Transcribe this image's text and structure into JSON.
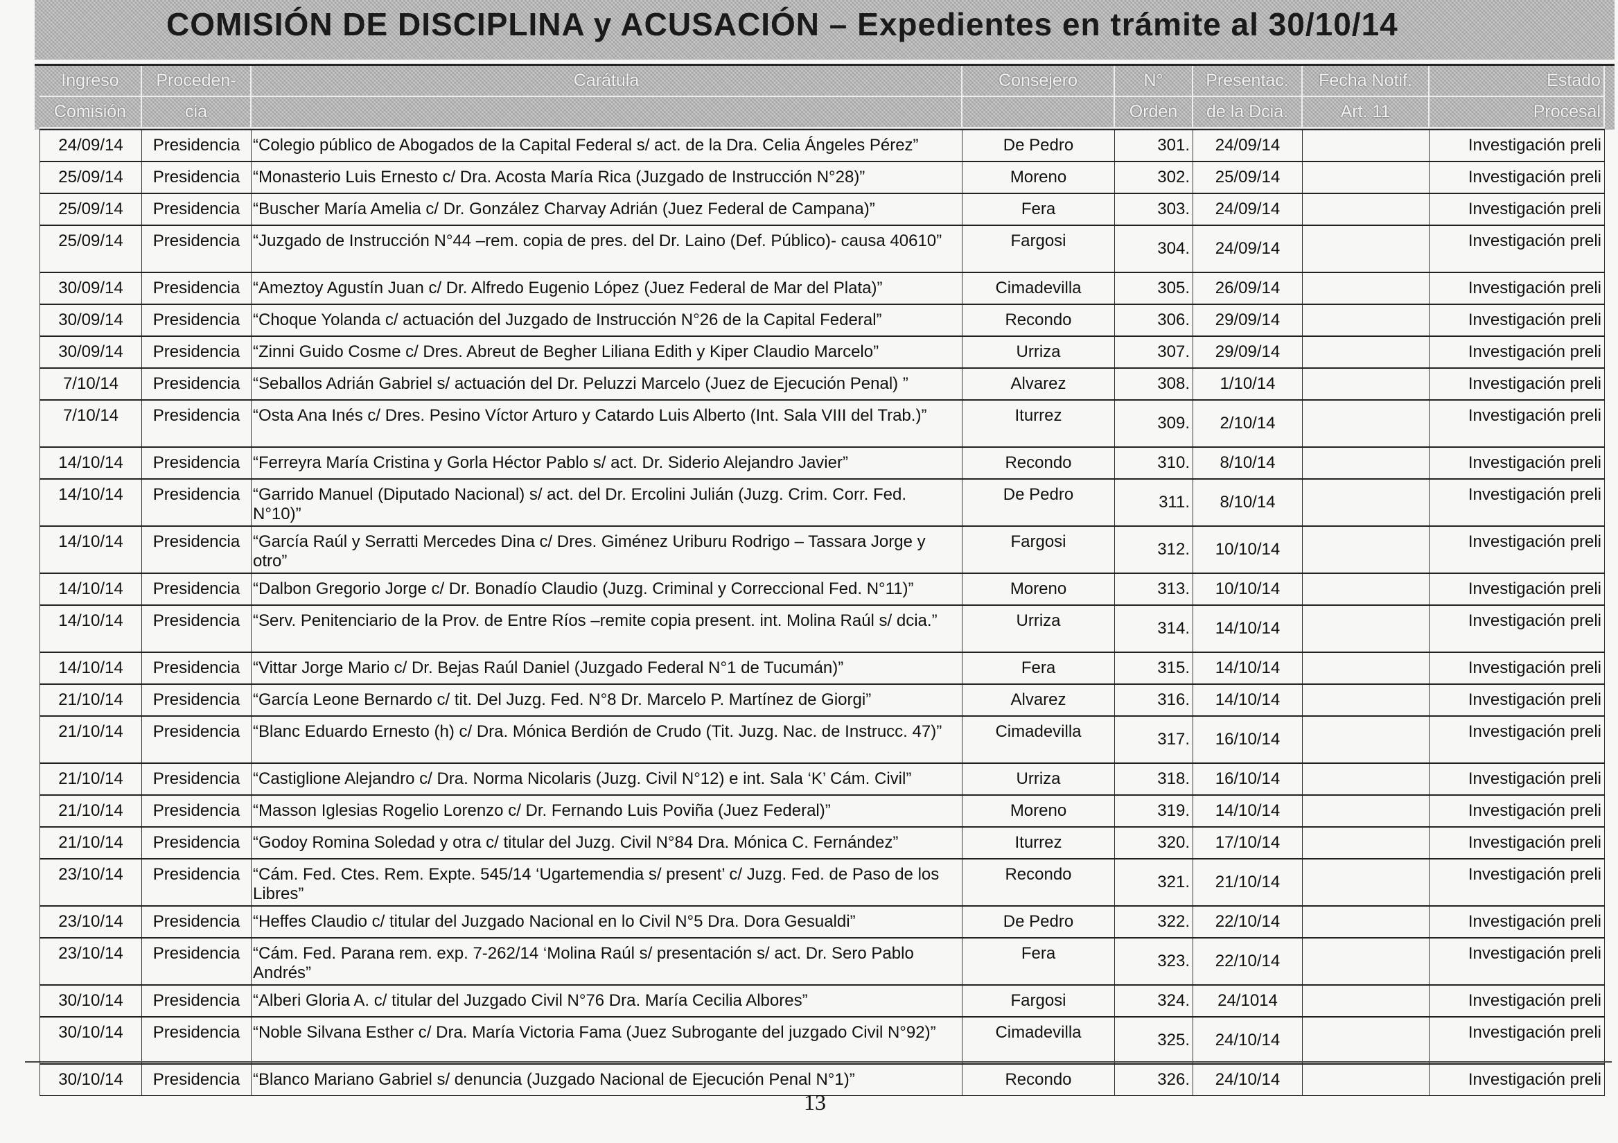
{
  "title": "COMISIÓN DE DISCIPLINA y ACUSACIÓN – Expedientes en trámite al 30/10/14",
  "headers": {
    "row1": [
      "Ingreso",
      "Proceden-",
      "Carátula",
      "Consejero",
      "N°",
      "Presentac.",
      "Fecha Notif.",
      "Estado"
    ],
    "row2": [
      "Comisión",
      "cia",
      "",
      "",
      "Orden",
      "de la Dcia.",
      "Art. 11",
      "Procesal"
    ]
  },
  "rows": [
    {
      "ingreso": "24/09/14",
      "procedencia": "Presidencia",
      "caratula": "“Colegio público de Abogados de la Capital Federal s/ act. de la Dra. Celia Ángeles Pérez”",
      "consejero": "De Pedro",
      "orden": "301.",
      "presentac": "24/09/14",
      "notif": "",
      "estado": "Investigación preli"
    },
    {
      "ingreso": "25/09/14",
      "procedencia": "Presidencia",
      "caratula": "“Monasterio Luis Ernesto c/ Dra. Acosta María Rica (Juzgado de Instrucción N°28)”",
      "consejero": "Moreno",
      "orden": "302.",
      "presentac": "25/09/14",
      "notif": "",
      "estado": "Investigación preli"
    },
    {
      "ingreso": "25/09/14",
      "procedencia": "Presidencia",
      "caratula": "“Buscher María Amelia c/ Dr. González Charvay Adrián (Juez Federal de Campana)”",
      "consejero": "Fera",
      "orden": "303.",
      "presentac": "24/09/14",
      "notif": "",
      "estado": "Investigación preli"
    },
    {
      "ingreso": "25/09/14",
      "procedencia": "Presidencia",
      "caratula": "“Juzgado de Instrucción N°44 –rem. copia de pres. del Dr. Laino (Def. Público)- causa 40610”",
      "consejero": "Fargosi",
      "orden": "304.",
      "presentac": "24/09/14",
      "notif": "",
      "estado": "Investigación preli",
      "double": true
    },
    {
      "ingreso": "30/09/14",
      "procedencia": "Presidencia",
      "caratula": "“Ameztoy Agustín Juan c/ Dr. Alfredo Eugenio López (Juez Federal de Mar del Plata)”",
      "consejero": "Cimadevilla",
      "orden": "305.",
      "presentac": "26/09/14",
      "notif": "",
      "estado": "Investigación preli"
    },
    {
      "ingreso": "30/09/14",
      "procedencia": "Presidencia",
      "caratula": "“Choque Yolanda c/ actuación del Juzgado de Instrucción N°26 de la Capital Federal”",
      "consejero": "Recondo",
      "orden": "306.",
      "presentac": "29/09/14",
      "notif": "",
      "estado": "Investigación preli"
    },
    {
      "ingreso": "30/09/14",
      "procedencia": "Presidencia",
      "caratula": "“Zinni Guido Cosme c/ Dres. Abreut de Begher Liliana Edith y Kiper Claudio Marcelo”",
      "consejero": "Urriza",
      "orden": "307.",
      "presentac": "29/09/14",
      "notif": "",
      "estado": "Investigación preli"
    },
    {
      "ingreso": "7/10/14",
      "procedencia": "Presidencia",
      "caratula": "“Seballos Adrián Gabriel s/ actuación del Dr. Peluzzi Marcelo (Juez de Ejecución Penal) ”",
      "consejero": "Alvarez",
      "orden": "308.",
      "presentac": "1/10/14",
      "notif": "",
      "estado": "Investigación preli"
    },
    {
      "ingreso": "7/10/14",
      "procedencia": "Presidencia",
      "caratula": "“Osta Ana Inés c/ Dres. Pesino Víctor Arturo y Catardo Luis Alberto (Int. Sala VIII del Trab.)”",
      "consejero": "Iturrez",
      "orden": "309.",
      "presentac": "2/10/14",
      "notif": "",
      "estado": "Investigación preli",
      "double": true
    },
    {
      "ingreso": "14/10/14",
      "procedencia": "Presidencia",
      "caratula": "“Ferreyra María Cristina y Gorla Héctor Pablo s/ act. Dr. Siderio Alejandro Javier”",
      "consejero": "Recondo",
      "orden": "310.",
      "presentac": "8/10/14",
      "notif": "",
      "estado": "Investigación preli"
    },
    {
      "ingreso": "14/10/14",
      "procedencia": "Presidencia",
      "caratula": "“Garrido Manuel (Diputado Nacional) s/ act. del Dr. Ercolini Julián (Juzg. Crim. Corr. Fed. N°10)”",
      "consejero": "De Pedro",
      "orden": "311.",
      "presentac": "8/10/14",
      "notif": "",
      "estado": "Investigación preli",
      "double": true
    },
    {
      "ingreso": "14/10/14",
      "procedencia": "Presidencia",
      "caratula": "“García Raúl y Serratti Mercedes Dina c/ Dres. Giménez Uriburu Rodrigo – Tassara Jorge y otro”",
      "consejero": "Fargosi",
      "orden": "312.",
      "presentac": "10/10/14",
      "notif": "",
      "estado": "Investigación preli",
      "double": true
    },
    {
      "ingreso": "14/10/14",
      "procedencia": "Presidencia",
      "caratula": "“Dalbon Gregorio Jorge c/ Dr. Bonadío Claudio (Juzg. Criminal y Correccional Fed. N°11)”",
      "consejero": "Moreno",
      "orden": "313.",
      "presentac": "10/10/14",
      "notif": "",
      "estado": "Investigación preli"
    },
    {
      "ingreso": "14/10/14",
      "procedencia": "Presidencia",
      "caratula": "“Serv. Penitenciario de la Prov. de Entre Ríos –remite copia present. int. Molina Raúl s/ dcia.”",
      "consejero": "Urriza",
      "orden": "314.",
      "presentac": "14/10/14",
      "notif": "",
      "estado": "Investigación preli",
      "double": true
    },
    {
      "ingreso": "14/10/14",
      "procedencia": "Presidencia",
      "caratula": "“Vittar Jorge Mario c/ Dr. Bejas Raúl Daniel (Juzgado Federal N°1 de Tucumán)”",
      "consejero": "Fera",
      "orden": "315.",
      "presentac": "14/10/14",
      "notif": "",
      "estado": "Investigación preli"
    },
    {
      "ingreso": "21/10/14",
      "procedencia": "Presidencia",
      "caratula": "“García Leone Bernardo c/ tit. Del Juzg. Fed. N°8 Dr. Marcelo P. Martínez de Giorgi”",
      "consejero": "Alvarez",
      "orden": "316.",
      "presentac": "14/10/14",
      "notif": "",
      "estado": "Investigación preli"
    },
    {
      "ingreso": "21/10/14",
      "procedencia": "Presidencia",
      "caratula": "“Blanc Eduardo Ernesto (h) c/ Dra. Mónica Berdión de Crudo (Tit. Juzg. Nac. de Instrucc. 47)”",
      "consejero": "Cimadevilla",
      "orden": "317.",
      "presentac": "16/10/14",
      "notif": "",
      "estado": "Investigación preli",
      "double": true
    },
    {
      "ingreso": "21/10/14",
      "procedencia": "Presidencia",
      "caratula": "“Castiglione Alejandro c/ Dra. Norma Nicolaris (Juzg. Civil N°12) e int. Sala ‘K’ Cám. Civil”",
      "consejero": "Urriza",
      "orden": "318.",
      "presentac": "16/10/14",
      "notif": "",
      "estado": "Investigación preli"
    },
    {
      "ingreso": "21/10/14",
      "procedencia": "Presidencia",
      "caratula": "“Masson Iglesias Rogelio Lorenzo c/ Dr. Fernando Luis Poviña (Juez Federal)”",
      "consejero": "Moreno",
      "orden": "319.",
      "presentac": "14/10/14",
      "notif": "",
      "estado": "Investigación preli"
    },
    {
      "ingreso": "21/10/14",
      "procedencia": "Presidencia",
      "caratula": "“Godoy Romina Soledad y otra c/ titular del Juzg. Civil N°84 Dra. Mónica C. Fernández”",
      "consejero": "Iturrez",
      "orden": "320.",
      "presentac": "17/10/14",
      "notif": "",
      "estado": "Investigación preli"
    },
    {
      "ingreso": "23/10/14",
      "procedencia": "Presidencia",
      "caratula": "“Cám. Fed. Ctes. Rem. Expte. 545/14 ‘Ugartemendia s/ present’ c/ Juzg. Fed. de Paso de los Libres”",
      "consejero": "Recondo",
      "orden": "321.",
      "presentac": "21/10/14",
      "notif": "",
      "estado": "Investigación preli",
      "double": true
    },
    {
      "ingreso": "23/10/14",
      "procedencia": "Presidencia",
      "caratula": "“Heffes Claudio c/ titular del Juzgado Nacional en lo Civil N°5 Dra. Dora Gesualdi”",
      "consejero": "De Pedro",
      "orden": "322.",
      "presentac": "22/10/14",
      "notif": "",
      "estado": "Investigación preli"
    },
    {
      "ingreso": "23/10/14",
      "procedencia": "Presidencia",
      "caratula": "“Cám. Fed. Parana rem. exp. 7-262/14 ‘Molina Raúl s/ presentación s/ act. Dr. Sero Pablo Andrés”",
      "consejero": "Fera",
      "orden": "323.",
      "presentac": "22/10/14",
      "notif": "",
      "estado": "Investigación preli",
      "double": true
    },
    {
      "ingreso": "30/10/14",
      "procedencia": "Presidencia",
      "caratula": "“Alberi Gloria A. c/ titular del Juzgado Civil N°76 Dra. María Cecilia Albores”",
      "consejero": "Fargosi",
      "orden": "324.",
      "presentac": "24/1014",
      "notif": "",
      "estado": "Investigación preli"
    },
    {
      "ingreso": "30/10/14",
      "procedencia": "Presidencia",
      "caratula": "“Noble Silvana Esther c/ Dra. María Victoria Fama (Juez Subrogante del juzgado Civil N°92)”",
      "consejero": "Cimadevilla",
      "orden": "325.",
      "presentac": "24/10/14",
      "notif": "",
      "estado": "Investigación preli",
      "double": true
    },
    {
      "ingreso": "30/10/14",
      "procedencia": "Presidencia",
      "caratula": "“Blanco Mariano Gabriel s/ denuncia (Juzgado Nacional de Ejecución Penal N°1)”",
      "consejero": "Recondo",
      "orden": "326.",
      "presentac": "24/10/14",
      "notif": "",
      "estado": "Investigación preli"
    }
  ],
  "page_number": "13"
}
